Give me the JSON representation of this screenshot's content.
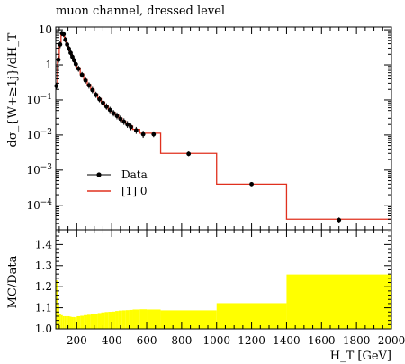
{
  "chart_data": [
    {
      "type": "line",
      "title": "muon channel, dressed level",
      "ylabel": "dσ_{W+≥1j}/dH_T",
      "yscale": "log",
      "ylim": [
        2e-05,
        12
      ],
      "xlim": [
        80,
        2000
      ],
      "y_ticks": [
        {
          "v": 10,
          "label": "10"
        },
        {
          "v": 1,
          "label": "1"
        },
        {
          "v": 0.1,
          "label": "10^-1"
        },
        {
          "v": 0.01,
          "label": "10^-2"
        },
        {
          "v": 0.001,
          "label": "10^-3"
        },
        {
          "v": 0.0001,
          "label": "10^-4"
        }
      ],
      "legend_position": "center-left",
      "series": [
        {
          "name": "Data",
          "kind": "points",
          "color": "#000000",
          "x": [
            84,
            95,
            105,
            115,
            125,
            135,
            145,
            155,
            165,
            175,
            185,
            195,
            210,
            230,
            250,
            270,
            290,
            310,
            330,
            350,
            370,
            390,
            410,
            430,
            450,
            470,
            490,
            510,
            540,
            580,
            640,
            840,
            1200,
            1700
          ],
          "y": [
            0.25,
            1.4,
            3.8,
            8.0,
            7.5,
            5.2,
            3.8,
            2.9,
            2.2,
            1.7,
            1.35,
            1.05,
            0.78,
            0.52,
            0.36,
            0.26,
            0.19,
            0.14,
            0.105,
            0.083,
            0.065,
            0.052,
            0.042,
            0.035,
            0.029,
            0.024,
            0.02,
            0.017,
            0.0135,
            0.0105,
            0.0105,
            0.0029,
            0.0004,
            3.8e-05
          ],
          "yerr_low": [
            0.2,
            1.1,
            3.0,
            6.6,
            6.2,
            4.3,
            3.15,
            2.4,
            1.82,
            1.4,
            1.1,
            0.86,
            0.64,
            0.43,
            0.29,
            0.21,
            0.155,
            0.115,
            0.086,
            0.068,
            0.053,
            0.042,
            0.034,
            0.028,
            0.0235,
            0.0194,
            0.016,
            0.0137,
            0.0108,
            0.0083,
            0.0087,
            0.0025,
            0.00035,
            3.2e-05
          ],
          "yerr_high": [
            0.31,
            1.78,
            4.8,
            9.6,
            9.0,
            6.3,
            4.6,
            3.5,
            2.66,
            2.06,
            1.64,
            1.28,
            0.95,
            0.63,
            0.45,
            0.32,
            0.235,
            0.172,
            0.13,
            0.102,
            0.08,
            0.064,
            0.052,
            0.044,
            0.036,
            0.03,
            0.025,
            0.0212,
            0.017,
            0.0133,
            0.0127,
            0.0034,
            0.00046,
            4.5e-05
          ]
        },
        {
          "name": "[1] 0",
          "kind": "step",
          "color": "#e0301e",
          "edges": [
            80,
            90,
            100,
            110,
            120,
            130,
            140,
            150,
            160,
            170,
            180,
            190,
            200,
            220,
            240,
            260,
            280,
            300,
            320,
            340,
            360,
            380,
            400,
            420,
            440,
            460,
            480,
            500,
            520,
            560,
            600,
            680,
            1000,
            1400,
            2000
          ],
          "values": [
            0.3,
            1.55,
            4.1,
            8.4,
            7.8,
            5.4,
            3.95,
            3.0,
            2.3,
            1.78,
            1.42,
            1.1,
            0.82,
            0.55,
            0.38,
            0.275,
            0.2,
            0.148,
            0.11,
            0.087,
            0.068,
            0.054,
            0.044,
            0.037,
            0.03,
            0.025,
            0.021,
            0.018,
            0.0145,
            0.0113,
            0.0113,
            0.003,
            0.0004,
            4e-05
          ]
        }
      ]
    },
    {
      "type": "area",
      "ylabel": "MC/Data",
      "xlabel": "H_T [GeV]",
      "xlim": [
        80,
        2000
      ],
      "ylim": [
        1.0,
        1.47
      ],
      "x_ticks": [
        200,
        400,
        600,
        800,
        1000,
        1200,
        1400,
        1600,
        1800,
        2000
      ],
      "y_ticks": [
        1.0,
        1.1,
        1.2,
        1.3,
        1.4
      ],
      "band_color": "#ffff00",
      "band": {
        "edges": [
          80,
          90,
          100,
          110,
          120,
          130,
          140,
          150,
          160,
          170,
          180,
          190,
          200,
          220,
          240,
          260,
          280,
          300,
          320,
          340,
          360,
          380,
          400,
          420,
          440,
          460,
          480,
          500,
          520,
          560,
          600,
          680,
          1000,
          1400,
          2000
        ],
        "values": [
          1.23,
          1.11,
          1.07,
          1.065,
          1.06,
          1.06,
          1.06,
          1.06,
          1.058,
          1.056,
          1.056,
          1.055,
          1.06,
          1.062,
          1.065,
          1.067,
          1.07,
          1.072,
          1.075,
          1.078,
          1.08,
          1.081,
          1.082,
          1.085,
          1.087,
          1.088,
          1.089,
          1.09,
          1.092,
          1.093,
          1.092,
          1.088,
          1.122,
          1.258
        ]
      }
    }
  ]
}
